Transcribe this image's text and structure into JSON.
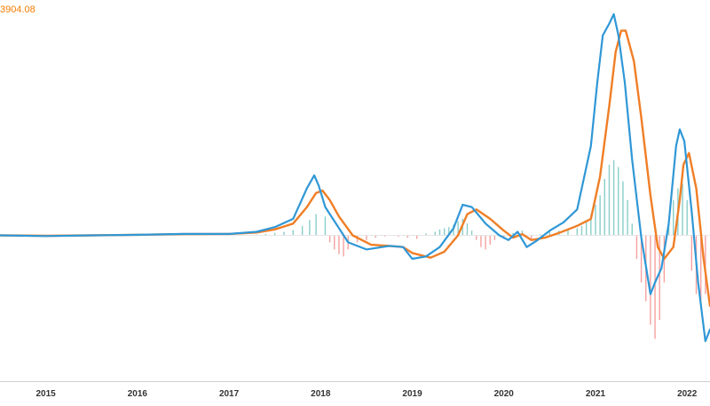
{
  "legend": {
    "value_label": "3904.08"
  },
  "chart_data": {
    "type": "line",
    "title": "",
    "xlabel": "",
    "ylabel": "",
    "x_tick_labels": [
      "2015",
      "2016",
      "2017",
      "2018",
      "2019",
      "2020",
      "2021",
      "2022"
    ],
    "xlim": [
      2014.5,
      2022.25
    ],
    "ylim": [
      -6200,
      9400
    ],
    "zero_line": true,
    "grid": false,
    "colors": {
      "macd": "#2f97d6",
      "signal": "#f07e26",
      "hist_pos": "#26a69a",
      "hist_neg": "#ef5350",
      "axis": "#cfcfcf"
    },
    "series": [
      {
        "role": "macd",
        "style": "line",
        "x": [
          2014.5,
          2015.0,
          2015.5,
          2016.0,
          2016.5,
          2017.0,
          2017.3,
          2017.5,
          2017.7,
          2017.85,
          2017.93,
          2017.98,
          2018.05,
          2018.15,
          2018.3,
          2018.5,
          2018.75,
          2018.9,
          2019.0,
          2019.15,
          2019.3,
          2019.45,
          2019.55,
          2019.65,
          2019.8,
          2019.95,
          2020.05,
          2020.15,
          2020.25,
          2020.35,
          2020.5,
          2020.65,
          2020.8,
          2020.95,
          2021.02,
          2021.08,
          2021.15,
          2021.2,
          2021.25,
          2021.32,
          2021.4,
          2021.5,
          2021.6,
          2021.65,
          2021.72,
          2021.8,
          2021.88,
          2021.92,
          2021.97,
          2022.05,
          2022.12,
          2022.2,
          2022.25
        ],
        "y": [
          0,
          -30,
          0,
          20,
          60,
          60,
          150,
          350,
          700,
          2000,
          2550,
          2100,
          1200,
          600,
          -300,
          -600,
          -450,
          -500,
          -1000,
          -900,
          -500,
          300,
          1300,
          1200,
          500,
          0,
          -200,
          150,
          -500,
          -250,
          200,
          550,
          1100,
          3800,
          6500,
          8500,
          9000,
          9400,
          8500,
          6500,
          3200,
          -100,
          -2500,
          -2000,
          -1400,
          500,
          3800,
          4500,
          4000,
          1000,
          -2000,
          -4500,
          -4000
        ]
      },
      {
        "role": "signal",
        "style": "line",
        "x": [
          2014.5,
          2015.0,
          2015.5,
          2016.0,
          2016.5,
          2017.0,
          2017.3,
          2017.5,
          2017.7,
          2017.85,
          2017.95,
          2018.02,
          2018.1,
          2018.2,
          2018.35,
          2018.55,
          2018.75,
          2018.9,
          2019.0,
          2019.2,
          2019.35,
          2019.5,
          2019.6,
          2019.7,
          2019.85,
          2020.0,
          2020.1,
          2020.2,
          2020.3,
          2020.45,
          2020.6,
          2020.8,
          2020.95,
          2021.05,
          2021.15,
          2021.22,
          2021.28,
          2021.33,
          2021.42,
          2021.5,
          2021.6,
          2021.68,
          2021.75,
          2021.85,
          2021.92,
          2021.96,
          2022.02,
          2022.1,
          2022.18,
          2022.25
        ],
        "y": [
          0,
          -20,
          0,
          20,
          50,
          60,
          120,
          250,
          500,
          1200,
          1800,
          1900,
          1500,
          800,
          0,
          -400,
          -450,
          -500,
          -750,
          -950,
          -700,
          0,
          900,
          1100,
          700,
          200,
          -100,
          50,
          -200,
          -100,
          100,
          400,
          700,
          2500,
          5500,
          7800,
          8700,
          8700,
          7400,
          5000,
          1700,
          -500,
          -1000,
          -500,
          1500,
          3000,
          3500,
          2000,
          -1000,
          -3000
        ]
      },
      {
        "role": "histogram",
        "style": "bar",
        "x": [
          2017.3,
          2017.4,
          2017.5,
          2017.6,
          2017.7,
          2017.8,
          2017.88,
          2017.95,
          2018.05,
          2018.1,
          2018.15,
          2018.2,
          2018.25,
          2018.3,
          2018.4,
          2018.5,
          2018.6,
          2018.7,
          2018.85,
          2018.95,
          2019.05,
          2019.15,
          2019.25,
          2019.3,
          2019.35,
          2019.4,
          2019.45,
          2019.5,
          2019.55,
          2019.6,
          2019.65,
          2019.7,
          2019.75,
          2019.8,
          2019.85,
          2019.9,
          2020.0,
          2020.1,
          2020.2,
          2020.3,
          2020.4,
          2020.5,
          2020.6,
          2020.7,
          2020.8,
          2020.85,
          2020.9,
          2020.95,
          2021.0,
          2021.05,
          2021.1,
          2021.15,
          2021.2,
          2021.25,
          2021.3,
          2021.35,
          2021.4,
          2021.45,
          2021.5,
          2021.55,
          2021.6,
          2021.65,
          2021.7,
          2021.75,
          2021.8,
          2021.85,
          2021.9,
          2021.95,
          2022.0,
          2022.05,
          2022.1,
          2022.15,
          2022.2
        ],
        "y": [
          30,
          60,
          100,
          150,
          220,
          400,
          650,
          900,
          800,
          -300,
          -600,
          -800,
          -900,
          -600,
          -300,
          -200,
          -100,
          -50,
          -60,
          -100,
          -150,
          80,
          150,
          250,
          300,
          350,
          450,
          600,
          700,
          500,
          200,
          -200,
          -500,
          -600,
          -400,
          -200,
          -150,
          100,
          200,
          -150,
          50,
          150,
          200,
          250,
          300,
          400,
          600,
          900,
          1300,
          1700,
          2400,
          3000,
          3200,
          2900,
          2300,
          1500,
          500,
          -1000,
          -2000,
          -2800,
          -3800,
          -4400,
          -3600,
          -2000,
          500,
          1500,
          2000,
          2200,
          1500,
          -1500,
          -2500,
          -3000,
          -2500
        ]
      }
    ]
  }
}
